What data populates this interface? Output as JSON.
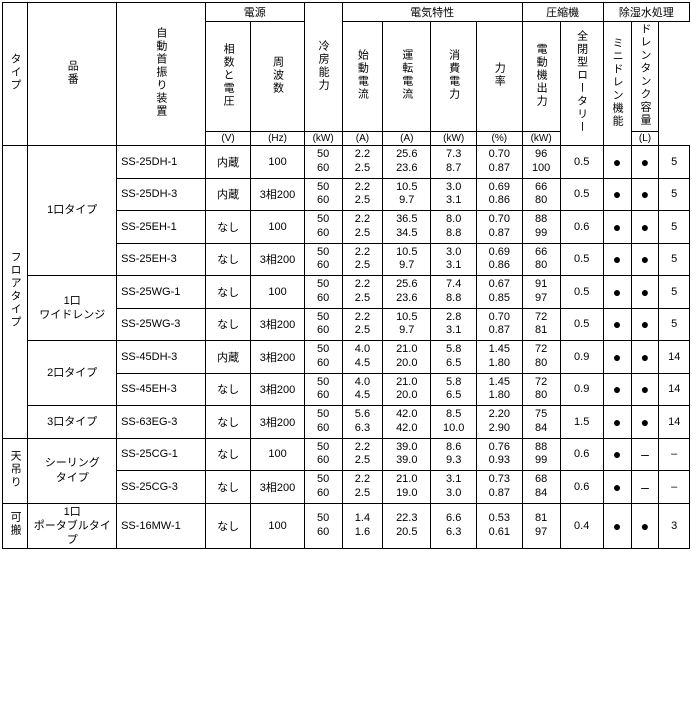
{
  "headers": {
    "type": "タイプ",
    "model": "品番",
    "auto_swing": "自動首振り装置",
    "power_group": "電源",
    "phase_voltage": "相数と電圧",
    "frequency": "周波数",
    "cooling": "冷房能力",
    "elec_group": "電気特性",
    "start_current": "始動電流",
    "run_current": "運転電流",
    "power_cons": "消費電力",
    "pf": "力率",
    "compressor_group": "圧縮機",
    "motor_output": "電動機出力",
    "rotary": "全閉型ロータリー",
    "dehumid_group": "除湿水処理",
    "drain_fn": "ミニドレン機能",
    "tank": "ドレンタンク容量"
  },
  "units": {
    "phase_voltage": "(V)",
    "frequency": "(Hz)",
    "cooling": "(kW)",
    "start_current": "(A)",
    "run_current": "(A)",
    "power_cons": "(kW)",
    "pf": "(%)",
    "motor_output": "(kW)",
    "tank": "(L)"
  },
  "groups": [
    {
      "name": "フロアタイプ",
      "subs": [
        {
          "name": "1口タイプ",
          "rows": [
            {
              "model": "SS-25DH-1",
              "auto": "内蔵",
              "phase": "100",
              "hz": [
                "50",
                "60"
              ],
              "cool": [
                "2.2",
                "2.5"
              ],
              "start": [
                "25.6",
                "23.6"
              ],
              "run": [
                "7.3",
                "8.7"
              ],
              "pow": [
                "0.70",
                "0.87"
              ],
              "pf": [
                "96",
                "100"
              ],
              "motor": "0.5",
              "rot": "●",
              "drain": "●",
              "tank": "5"
            },
            {
              "model": "SS-25DH-3",
              "auto": "内蔵",
              "phase": "3相200",
              "hz": [
                "50",
                "60"
              ],
              "cool": [
                "2.2",
                "2.5"
              ],
              "start": [
                "10.5",
                "9.7"
              ],
              "run": [
                "3.0",
                "3.1"
              ],
              "pow": [
                "0.69",
                "0.86"
              ],
              "pf": [
                "66",
                "80"
              ],
              "motor": "0.5",
              "rot": "●",
              "drain": "●",
              "tank": "5"
            },
            {
              "model": "SS-25EH-1",
              "auto": "なし",
              "phase": "100",
              "hz": [
                "50",
                "60"
              ],
              "cool": [
                "2.2",
                "2.5"
              ],
              "start": [
                "36.5",
                "34.5"
              ],
              "run": [
                "8.0",
                "8.8"
              ],
              "pow": [
                "0.70",
                "0.87"
              ],
              "pf": [
                "88",
                "99"
              ],
              "motor": "0.6",
              "rot": "●",
              "drain": "●",
              "tank": "5"
            },
            {
              "model": "SS-25EH-3",
              "auto": "なし",
              "phase": "3相200",
              "hz": [
                "50",
                "60"
              ],
              "cool": [
                "2.2",
                "2.5"
              ],
              "start": [
                "10.5",
                "9.7"
              ],
              "run": [
                "3.0",
                "3.1"
              ],
              "pow": [
                "0.69",
                "0.86"
              ],
              "pf": [
                "66",
                "80"
              ],
              "motor": "0.5",
              "rot": "●",
              "drain": "●",
              "tank": "5"
            }
          ]
        },
        {
          "name": "1口\nワイドレンジ",
          "rows": [
            {
              "model": "SS-25WG-1",
              "auto": "なし",
              "phase": "100",
              "hz": [
                "50",
                "60"
              ],
              "cool": [
                "2.2",
                "2.5"
              ],
              "start": [
                "25.6",
                "23.6"
              ],
              "run": [
                "7.4",
                "8.8"
              ],
              "pow": [
                "0.67",
                "0.85"
              ],
              "pf": [
                "91",
                "97"
              ],
              "motor": "0.5",
              "rot": "●",
              "drain": "●",
              "tank": "5"
            },
            {
              "model": "SS-25WG-3",
              "auto": "なし",
              "phase": "3相200",
              "hz": [
                "50",
                "60"
              ],
              "cool": [
                "2.2",
                "2.5"
              ],
              "start": [
                "10.5",
                "9.7"
              ],
              "run": [
                "2.8",
                "3.1"
              ],
              "pow": [
                "0.70",
                "0.87"
              ],
              "pf": [
                "72",
                "81"
              ],
              "motor": "0.5",
              "rot": "●",
              "drain": "●",
              "tank": "5"
            }
          ]
        },
        {
          "name": "2口タイプ",
          "rows": [
            {
              "model": "SS-45DH-3",
              "auto": "内蔵",
              "phase": "3相200",
              "hz": [
                "50",
                "60"
              ],
              "cool": [
                "4.0",
                "4.5"
              ],
              "start": [
                "21.0",
                "20.0"
              ],
              "run": [
                "5.8",
                "6.5"
              ],
              "pow": [
                "1.45",
                "1.80"
              ],
              "pf": [
                "72",
                "80"
              ],
              "motor": "0.9",
              "rot": "●",
              "drain": "●",
              "tank": "14"
            },
            {
              "model": "SS-45EH-3",
              "auto": "なし",
              "phase": "3相200",
              "hz": [
                "50",
                "60"
              ],
              "cool": [
                "4.0",
                "4.5"
              ],
              "start": [
                "21.0",
                "20.0"
              ],
              "run": [
                "5.8",
                "6.5"
              ],
              "pow": [
                "1.45",
                "1.80"
              ],
              "pf": [
                "72",
                "80"
              ],
              "motor": "0.9",
              "rot": "●",
              "drain": "●",
              "tank": "14"
            }
          ]
        },
        {
          "name": "3口タイプ",
          "rows": [
            {
              "model": "SS-63EG-3",
              "auto": "なし",
              "phase": "3相200",
              "hz": [
                "50",
                "60"
              ],
              "cool": [
                "5.6",
                "6.3"
              ],
              "start": [
                "42.0",
                "42.0"
              ],
              "run": [
                "8.5",
                "10.0"
              ],
              "pow": [
                "2.20",
                "2.90"
              ],
              "pf": [
                "75",
                "84"
              ],
              "motor": "1.5",
              "rot": "●",
              "drain": "●",
              "tank": "14"
            }
          ]
        }
      ]
    },
    {
      "name": "天吊り",
      "subs": [
        {
          "name": "シーリング\nタイプ",
          "rows": [
            {
              "model": "SS-25CG-1",
              "auto": "なし",
              "phase": "100",
              "hz": [
                "50",
                "60"
              ],
              "cool": [
                "2.2",
                "2.5"
              ],
              "start": [
                "39.0",
                "39.0"
              ],
              "run": [
                "8.6",
                "9.3"
              ],
              "pow": [
                "0.76",
                "0.93"
              ],
              "pf": [
                "88",
                "99"
              ],
              "motor": "0.6",
              "rot": "●",
              "drain": "–",
              "tank": "–"
            },
            {
              "model": "SS-25CG-3",
              "auto": "なし",
              "phase": "3相200",
              "hz": [
                "50",
                "60"
              ],
              "cool": [
                "2.2",
                "2.5"
              ],
              "start": [
                "21.0",
                "19.0"
              ],
              "run": [
                "3.1",
                "3.0"
              ],
              "pow": [
                "0.73",
                "0.87"
              ],
              "pf": [
                "68",
                "84"
              ],
              "motor": "0.6",
              "rot": "●",
              "drain": "–",
              "tank": "–"
            }
          ]
        }
      ]
    },
    {
      "name": "可搬",
      "subs": [
        {
          "name": "1口\nポータブルタイプ",
          "rows": [
            {
              "model": "SS-16MW-1",
              "auto": "なし",
              "phase": "100",
              "hz": [
                "50",
                "60"
              ],
              "cool": [
                "1.4",
                "1.6"
              ],
              "start": [
                "22.3",
                "20.5"
              ],
              "run": [
                "6.6",
                "6.3"
              ],
              "pow": [
                "0.53",
                "0.61"
              ],
              "pf": [
                "81",
                "97"
              ],
              "motor": "0.4",
              "rot": "●",
              "drain": "●",
              "tank": "3"
            }
          ]
        }
      ]
    }
  ]
}
